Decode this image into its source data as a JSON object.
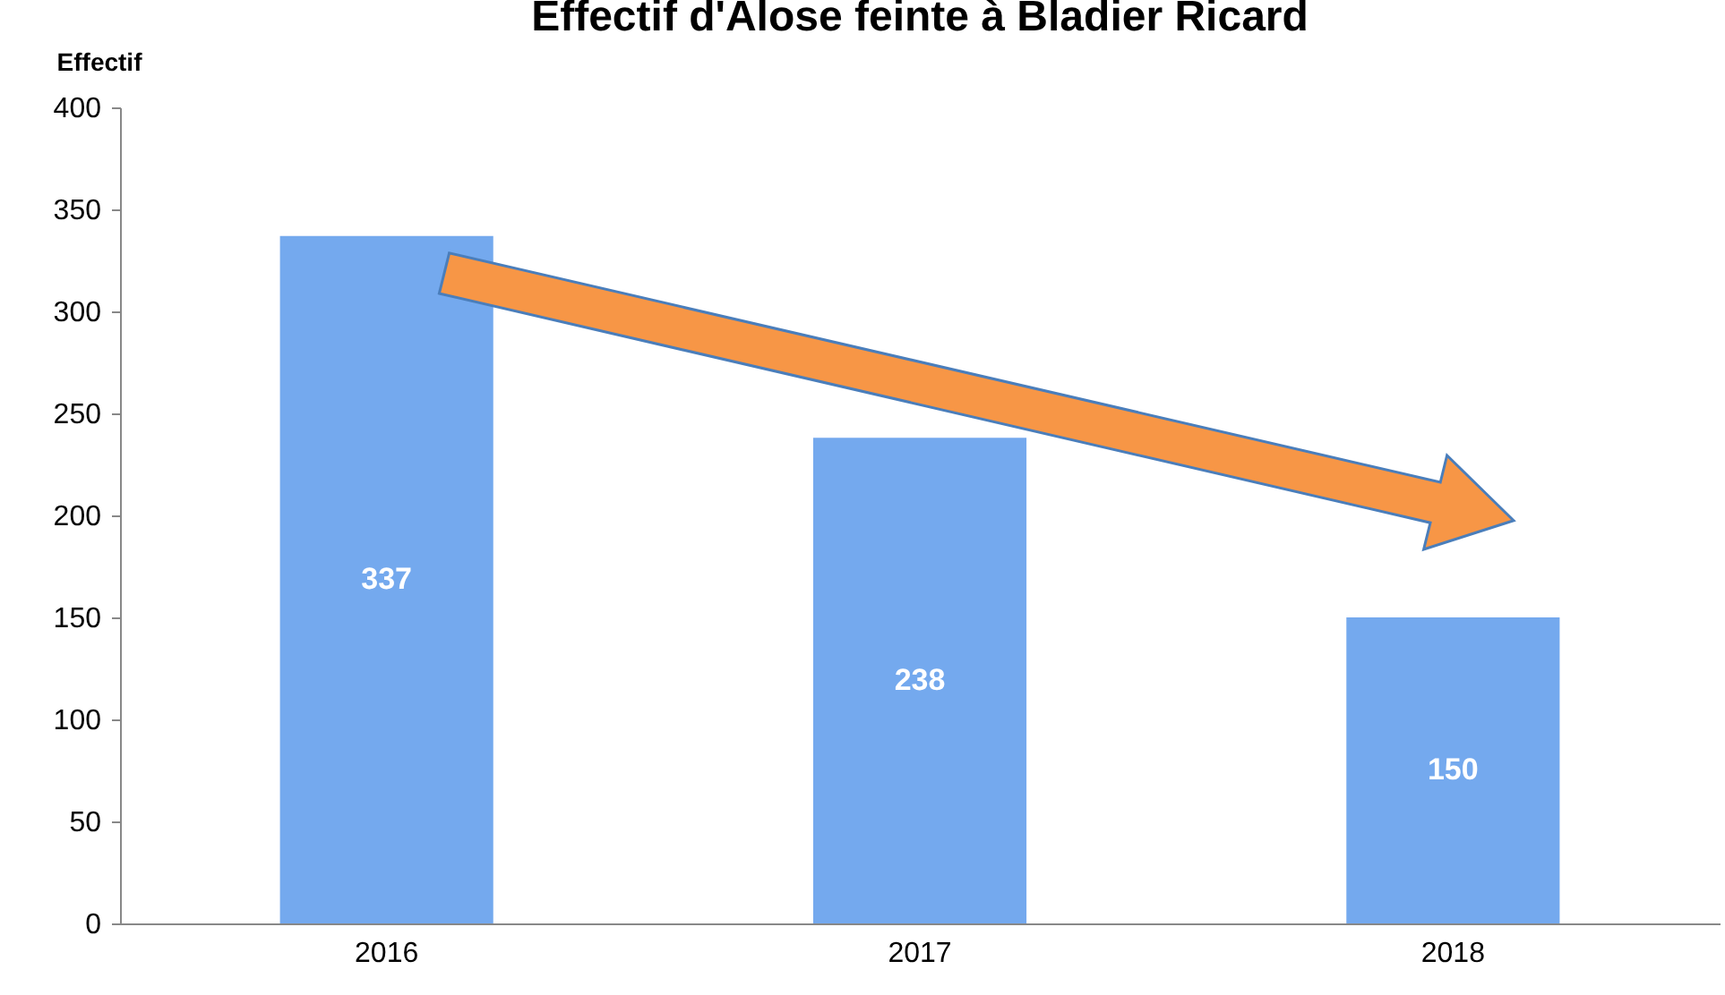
{
  "chart_data": {
    "type": "bar",
    "title": "Effectif d'Alose feinte à Bladier Ricard",
    "ylabel": "Effectif",
    "categories": [
      "2016",
      "2017",
      "2018"
    ],
    "values": [
      337,
      238,
      150
    ],
    "color": "#74a9ee",
    "ylim": [
      0,
      400
    ],
    "yticks": [
      0,
      50,
      100,
      150,
      200,
      250,
      300,
      350,
      400
    ],
    "grid": false,
    "data_labels": true
  }
}
